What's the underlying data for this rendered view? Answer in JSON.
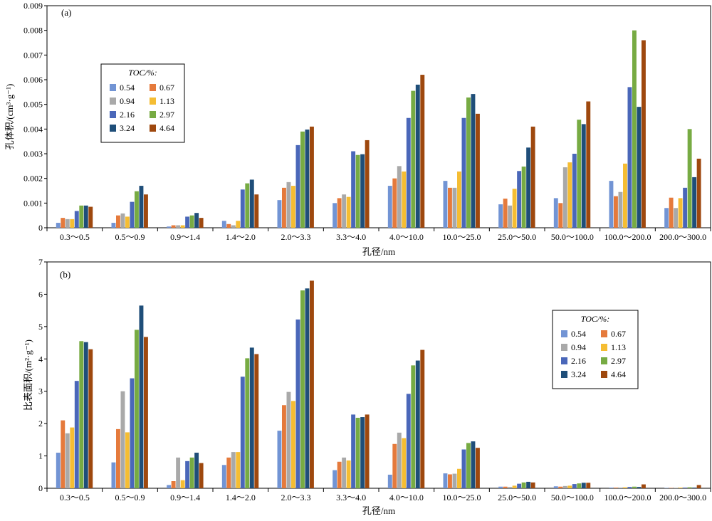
{
  "series_colors": [
    "#7294d4",
    "#e57a3c",
    "#a9a9a9",
    "#f5bd33",
    "#4a67b9",
    "#77ab43",
    "#1f4e79",
    "#9e480e"
  ],
  "chart_data": [
    {
      "type": "bar",
      "panel_label": "(a)",
      "xlabel": "孔径/nm",
      "ylabel": "孔体积/(cm³·g⁻¹)",
      "ylim": [
        0,
        0.009
      ],
      "yticks": [
        "0",
        "0.001",
        "0.002",
        "0.003",
        "0.004",
        "0.005",
        "0.006",
        "0.007",
        "0.008",
        "0.009"
      ],
      "legend_title": "TOC/%:",
      "legend_placement": "upper-left",
      "categories": [
        "0.3～0.5",
        "0.5～0.9",
        "0.9～1.4",
        "1.4～2.0",
        "2.0～3.3",
        "3.3～4.0",
        "4.0～10.0",
        "10.0～25.0",
        "25.0～50.0",
        "50.0～100.0",
        "100.0～200.0",
        "200.0～300.0"
      ],
      "series": [
        {
          "name": "0.54",
          "values": [
            0.0002,
            0.0002,
            5e-05,
            0.00028,
            0.00112,
            0.001,
            0.0017,
            0.0019,
            0.00095,
            0.0012,
            0.0019,
            0.0008
          ]
        },
        {
          "name": "0.67",
          "values": [
            0.0004,
            0.0005,
            0.0001,
            0.00015,
            0.00162,
            0.0012,
            0.002,
            0.00162,
            0.00118,
            0.001,
            0.00128,
            0.00122
          ]
        },
        {
          "name": "0.94",
          "values": [
            0.00035,
            0.00058,
            0.0001,
            0.0001,
            0.00185,
            0.00135,
            0.0025,
            0.00162,
            0.0009,
            0.00245,
            0.00145,
            0.0008
          ]
        },
        {
          "name": "1.13",
          "values": [
            0.00035,
            0.00045,
            0.0001,
            0.00028,
            0.0017,
            0.00125,
            0.00228,
            0.00228,
            0.00158,
            0.00265,
            0.0026,
            0.0012
          ]
        },
        {
          "name": "2.16",
          "values": [
            0.00068,
            0.00105,
            0.00045,
            0.00155,
            0.00335,
            0.0031,
            0.00445,
            0.00445,
            0.0023,
            0.003,
            0.0057,
            0.00162
          ]
        },
        {
          "name": "2.97",
          "values": [
            0.0009,
            0.00148,
            0.0005,
            0.0018,
            0.0039,
            0.00295,
            0.00555,
            0.00528,
            0.00248,
            0.00438,
            0.008,
            0.004
          ]
        },
        {
          "name": "3.24",
          "values": [
            0.0009,
            0.0017,
            0.0006,
            0.00195,
            0.00398,
            0.00298,
            0.0058,
            0.00542,
            0.00325,
            0.0042,
            0.0049,
            0.00205
          ]
        },
        {
          "name": "4.64",
          "values": [
            0.00085,
            0.00135,
            0.0004,
            0.00135,
            0.0041,
            0.00355,
            0.0062,
            0.00462,
            0.0041,
            0.00512,
            0.0076,
            0.0028
          ]
        }
      ]
    },
    {
      "type": "bar",
      "panel_label": "(b)",
      "xlabel": "孔径/nm",
      "ylabel": "比表面积/(m²·g⁻¹)",
      "ylim": [
        0,
        7
      ],
      "yticks": [
        "0",
        "1",
        "2",
        "3",
        "4",
        "5",
        "6",
        "7"
      ],
      "legend_title": "TOC/%:",
      "legend_placement": "right",
      "categories": [
        "0.3～0.5",
        "0.5～0.9",
        "0.9～1.4",
        "1.4～2.0",
        "2.0～3.3",
        "3.3～4.0",
        "4.0～10.0",
        "10.0～25.0",
        "25.0～50.0",
        "50.0～100.0",
        "100.0～200.0",
        "200.0～300.0"
      ],
      "series": [
        {
          "name": "0.54",
          "values": [
            1.1,
            0.8,
            0.1,
            0.72,
            1.78,
            0.56,
            0.42,
            0.46,
            0.05,
            0.06,
            0.02,
            0.01
          ]
        },
        {
          "name": "0.67",
          "values": [
            2.1,
            1.83,
            0.22,
            0.95,
            2.57,
            0.82,
            1.37,
            0.43,
            0.05,
            0.05,
            0.02,
            0.01
          ]
        },
        {
          "name": "0.94",
          "values": [
            1.7,
            3.0,
            0.95,
            1.12,
            2.98,
            0.95,
            1.72,
            0.45,
            0.04,
            0.07,
            0.02,
            0.01
          ]
        },
        {
          "name": "1.13",
          "values": [
            1.88,
            1.73,
            0.25,
            1.12,
            2.7,
            0.86,
            1.55,
            0.6,
            0.08,
            0.08,
            0.03,
            0.02
          ]
        },
        {
          "name": "2.16",
          "values": [
            3.32,
            3.4,
            0.84,
            3.45,
            5.22,
            2.28,
            2.92,
            1.2,
            0.14,
            0.13,
            0.04,
            0.02
          ]
        },
        {
          "name": "2.97",
          "values": [
            4.55,
            4.9,
            0.95,
            4.02,
            6.12,
            2.18,
            3.8,
            1.4,
            0.18,
            0.15,
            0.05,
            0.03
          ]
        },
        {
          "name": "3.24",
          "values": [
            4.52,
            5.65,
            1.1,
            4.35,
            6.18,
            2.2,
            3.95,
            1.45,
            0.2,
            0.17,
            0.04,
            0.02
          ]
        },
        {
          "name": "4.64",
          "values": [
            4.3,
            4.68,
            0.78,
            4.15,
            6.42,
            2.28,
            4.28,
            1.25,
            0.18,
            0.17,
            0.12,
            0.1
          ]
        }
      ]
    }
  ]
}
